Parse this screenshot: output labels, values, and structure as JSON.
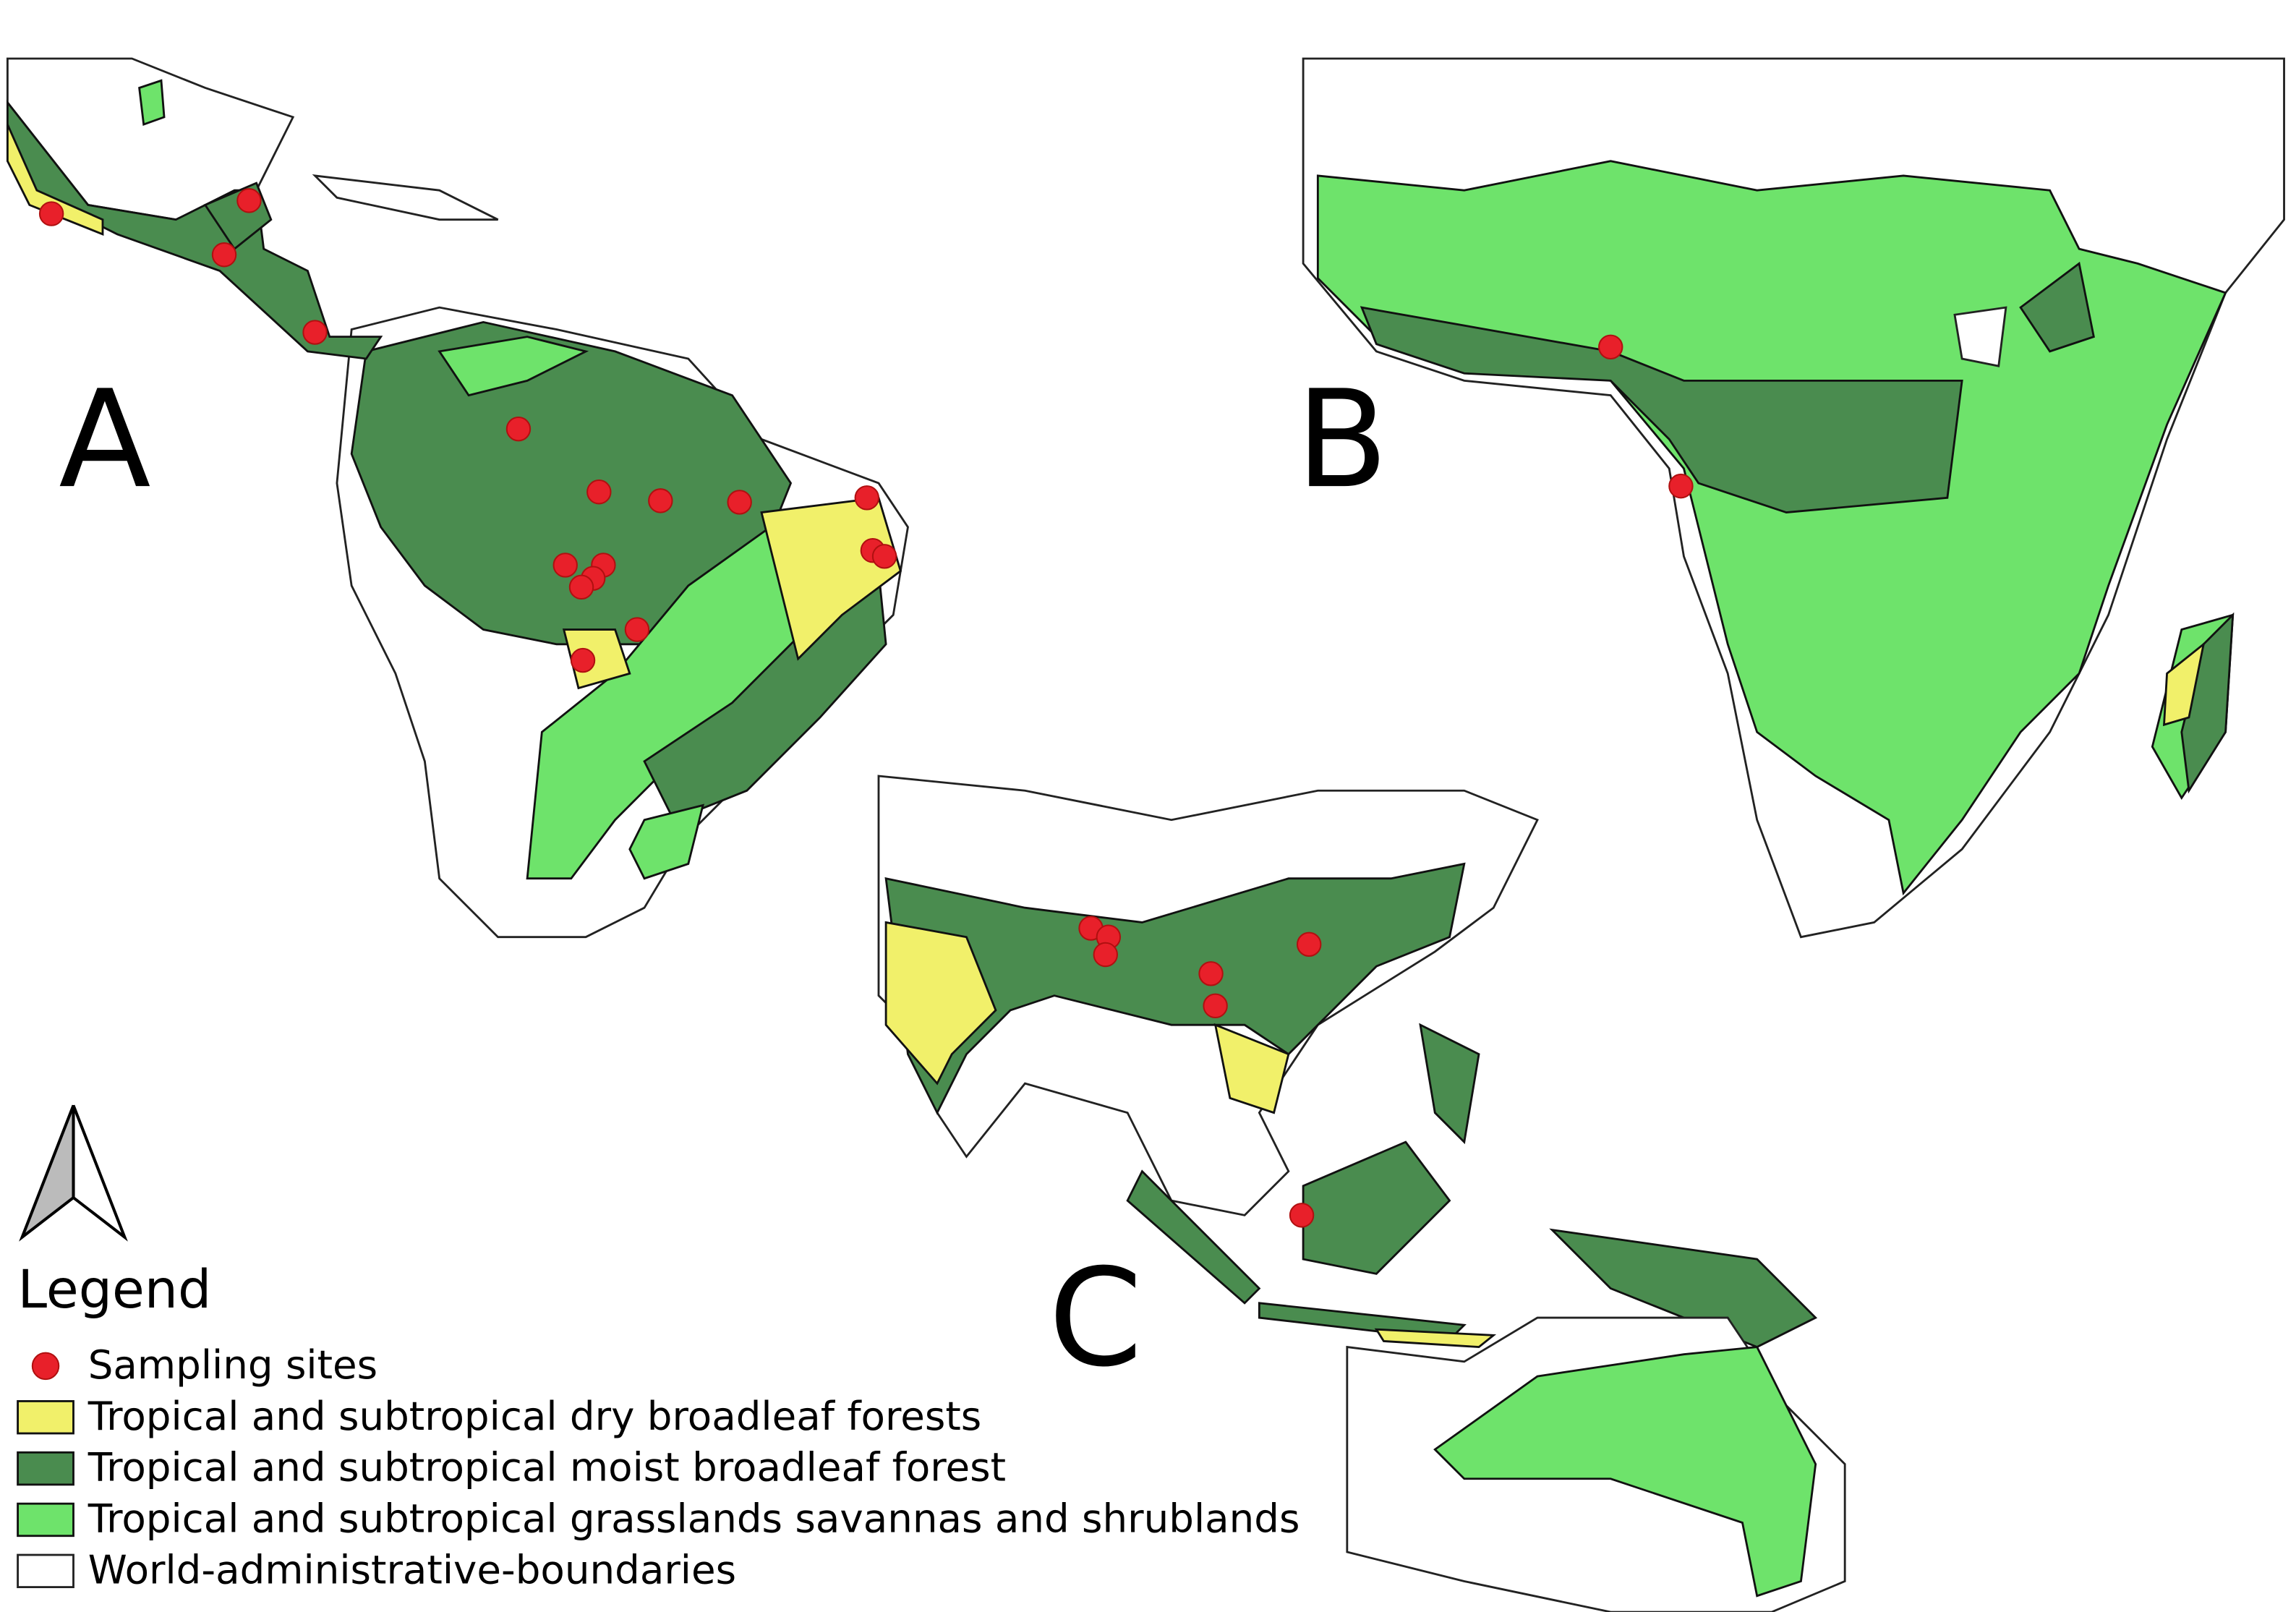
{
  "panels": [
    {
      "label": "A"
    },
    {
      "label": "B"
    },
    {
      "label": "C"
    }
  ],
  "legend": {
    "title": "Legend",
    "items": [
      "Sampling sites",
      "Tropical and subtropical dry broadleaf forests",
      "Tropical and subtropical moist broadleaf forest",
      "Tropical and subtropical grasslands savannas and shrublands",
      "World-administrative-boundaries"
    ]
  }
}
